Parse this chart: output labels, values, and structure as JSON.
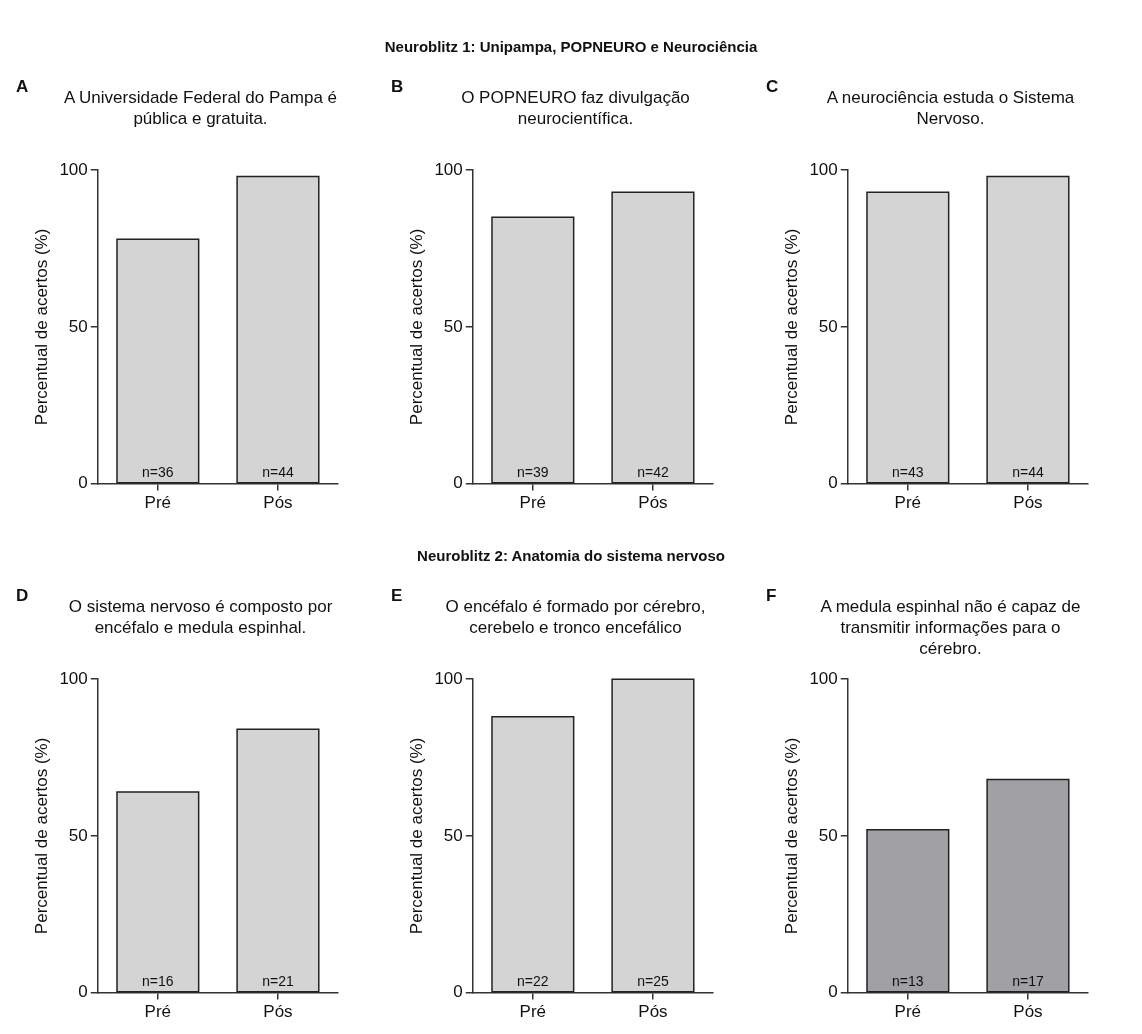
{
  "chart_data": [
    {
      "type": "other",
      "title": "Neuroblitz 1: Unipampa, POPNEURO e Neurociência"
    },
    {
      "type": "bar",
      "title": "A Universidade Federal do Pampa é pública e gratuita.",
      "ylabel": "Percentual de acertos (%)",
      "categories": [
        "Pré",
        "Pós"
      ],
      "values": [
        78,
        98
      ],
      "color": "#d4d4d4",
      "ylim": [
        0,
        100
      ],
      "yticks": [
        0,
        50,
        100
      ],
      "grid": false,
      "annotations": [
        "A",
        {
          "text": "n=36",
          "x": "Pré",
          "y": 0
        },
        {
          "text": "n=44",
          "x": "Pós",
          "y": 0
        }
      ]
    },
    {
      "type": "bar",
      "title": "O POPNEURO faz divulgação neurocientífica.",
      "ylabel": "Percentual de acertos (%)",
      "categories": [
        "Pré",
        "Pós"
      ],
      "values": [
        85,
        93
      ],
      "color": "#d4d4d4",
      "ylim": [
        0,
        100
      ],
      "yticks": [
        0,
        50,
        100
      ],
      "grid": false,
      "annotations": [
        "B",
        {
          "text": "n=39",
          "x": "Pré",
          "y": 0
        },
        {
          "text": "n=42",
          "x": "Pós",
          "y": 0
        }
      ]
    },
    {
      "type": "bar",
      "title": "A neurociência estuda o Sistema Nervoso.",
      "ylabel": "Percentual de acertos (%)",
      "categories": [
        "Pré",
        "Pós"
      ],
      "values": [
        93,
        98
      ],
      "color": "#d4d4d4",
      "ylim": [
        0,
        100
      ],
      "yticks": [
        0,
        50,
        100
      ],
      "grid": false,
      "annotations": [
        "C",
        {
          "text": "n=43",
          "x": "Pré",
          "y": 0
        },
        {
          "text": "n=44",
          "x": "Pós",
          "y": 0
        }
      ]
    },
    {
      "type": "other",
      "title": "Neuroblitz 2: Anatomia do sistema nervoso"
    },
    {
      "type": "bar",
      "title": "O sistema nervoso é composto por encéfalo e medula espinhal.",
      "ylabel": "Percentual de acertos (%)",
      "categories": [
        "Pré",
        "Pós"
      ],
      "values": [
        64,
        84
      ],
      "color": "#d4d4d4",
      "ylim": [
        0,
        100
      ],
      "yticks": [
        0,
        50,
        100
      ],
      "grid": false,
      "annotations": [
        "D",
        {
          "text": "n=16",
          "x": "Pré",
          "y": 0
        },
        {
          "text": "n=21",
          "x": "Pós",
          "y": 0
        }
      ]
    },
    {
      "type": "bar",
      "title": "O encéfalo é formado por cérebro, cerebelo e tronco encefálico",
      "ylabel": "Percentual de acertos (%)",
      "categories": [
        "Pré",
        "Pós"
      ],
      "values": [
        88,
        100
      ],
      "color": "#d4d4d4",
      "ylim": [
        0,
        100
      ],
      "yticks": [
        0,
        50,
        100
      ],
      "grid": false,
      "annotations": [
        "E",
        {
          "text": "n=22",
          "x": "Pré",
          "y": 0
        },
        {
          "text": "n=25",
          "x": "Pós",
          "y": 0
        }
      ]
    },
    {
      "type": "bar",
      "title": "A medula espinhal não é capaz de transmitir informações para o cérebro.",
      "ylabel": "Percentual de acertos (%)",
      "categories": [
        "Pré",
        "Pós"
      ],
      "values": [
        52,
        68
      ],
      "color": "#a1a1a5",
      "ylim": [
        0,
        100
      ],
      "yticks": [
        0,
        50,
        100
      ],
      "grid": false,
      "annotations": [
        "F",
        {
          "text": "n=13",
          "x": "Pré",
          "y": 0
        },
        {
          "text": "n=17",
          "x": "Pós",
          "y": 0
        }
      ]
    }
  ]
}
